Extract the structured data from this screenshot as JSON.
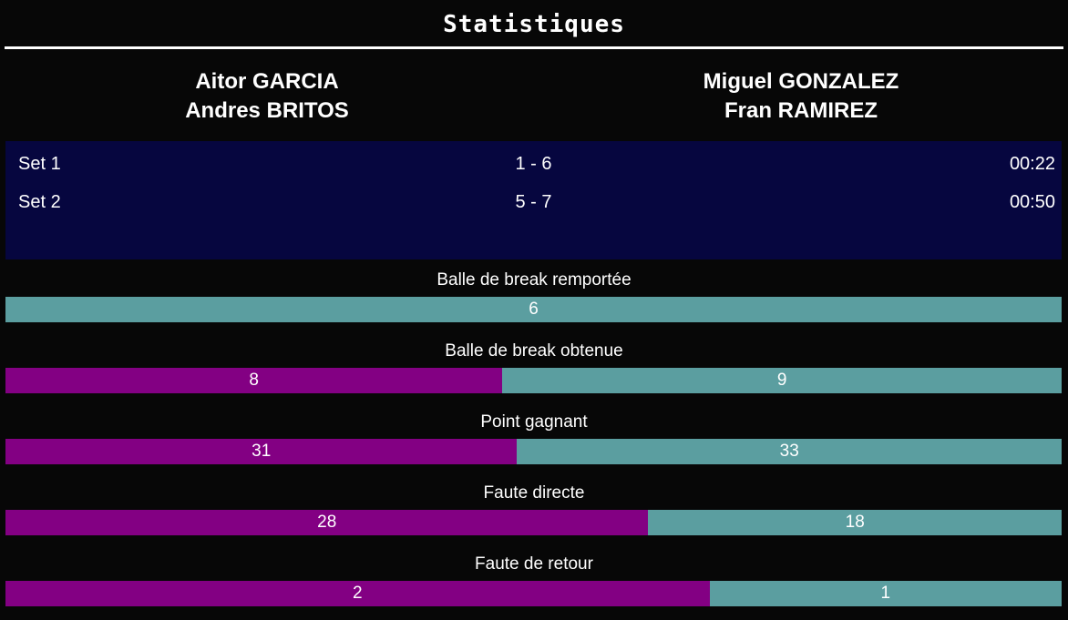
{
  "title": "Statistiques",
  "teams": {
    "team1": {
      "line1": "Aitor GARCIA",
      "line2": "Andres BRITOS"
    },
    "team2": {
      "line1": "Miguel GONZALEZ",
      "line2": "Fran RAMIREZ"
    }
  },
  "sets": [
    {
      "name": "Set 1",
      "score": "1 - 6",
      "duration": "00:22"
    },
    {
      "name": "Set 2",
      "score": "5 - 7",
      "duration": "00:50"
    }
  ],
  "stats": [
    {
      "label": "Balle de break remportée",
      "team1": null,
      "team2": 6
    },
    {
      "label": "Balle de break obtenue",
      "team1": 8,
      "team2": 9
    },
    {
      "label": "Point gagnant",
      "team1": 31,
      "team2": 33
    },
    {
      "label": "Faute directe",
      "team1": 28,
      "team2": 18
    },
    {
      "label": "Faute de retour",
      "team1": 2,
      "team2": 1
    }
  ],
  "colors": {
    "background": "#070707",
    "sets_panel": "#06063f",
    "team1_bar": "#830083",
    "team2_bar": "#5b9ea0",
    "text": "#ffffff",
    "divider": "#ffffff"
  },
  "chart_data": {
    "type": "bar",
    "orientation": "horizontal-stacked-proportional",
    "title": "Statistiques",
    "categories": [
      "Balle de break remportée",
      "Balle de break obtenue",
      "Point gagnant",
      "Faute directe",
      "Faute de retour"
    ],
    "series": [
      {
        "name": "Aitor GARCIA / Andres BRITOS",
        "color": "#830083",
        "values": [
          null,
          8,
          31,
          28,
          2
        ]
      },
      {
        "name": "Miguel GONZALEZ / Fran RAMIREZ",
        "color": "#5b9ea0",
        "values": [
          6,
          9,
          33,
          18,
          1
        ]
      }
    ],
    "legend_position": "none",
    "value_labels": "inside-center"
  }
}
